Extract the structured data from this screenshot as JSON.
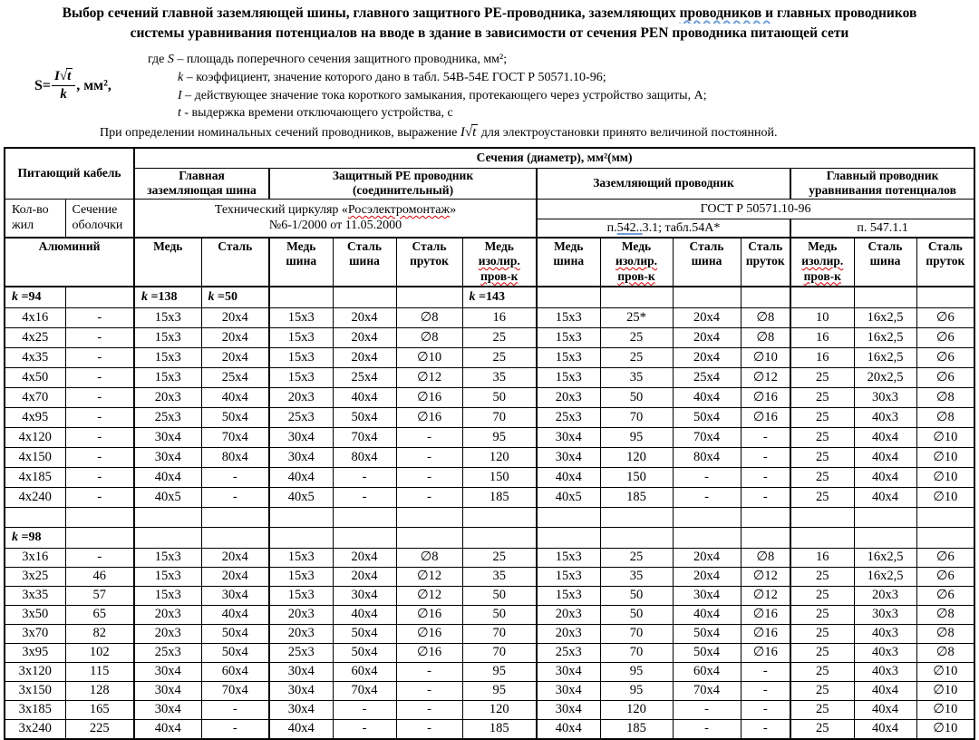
{
  "title": {
    "line1_pre": "Выбор сечений главной заземляющей шины, главного защитного РЕ-проводника, заземляющих ",
    "line1_marked": "проводников  и",
    "line1_post": " главных проводников",
    "line2": "системы уравнивания потенциалов на вводе в здание в зависимости от сечения PEN проводника питающей сети"
  },
  "formula": {
    "lhs": "S=",
    "num_var": "I",
    "num_rad": "t",
    "den": "k",
    "units": ", мм²,"
  },
  "definitions": [
    {
      "pre": "где ",
      "var": "S",
      "text": " – площадь поперечного сечения защитного проводника, мм²;"
    },
    {
      "pre": "",
      "var": "k",
      "text": " – коэффициент, значение которого дано в табл. 54В-54Е ГОСТ Р 50571.10-96;"
    },
    {
      "pre": "",
      "var": "I",
      "text": " – действующее значение тока короткого замыкания, протекающего через устройство защиты, А;"
    },
    {
      "pre": "",
      "var": "t",
      "text": " - выдержка времени отключающего устройства, с"
    }
  ],
  "note": {
    "pre": "При определении номинальных сечений проводников, выражение ",
    "var": "I",
    "rad": "t",
    "post": " для электроустановки принято величиной постоянной."
  },
  "table": {
    "header": {
      "feeding_cable": "Питающий кабель",
      "sections_title": "Сечения (диаметр), мм²(мм)",
      "gzsh_l1": "Главная",
      "gzsh_l2": "заземляющая шина",
      "pe_l1": "Защитный РЕ проводник",
      "pe_l2": "(соединительный)",
      "ground": "Заземляющий проводник",
      "equal_l1": "Главный проводник",
      "equal_l2": "уравнивания потенциалов",
      "cores_l1": "Кол-во",
      "cores_l2": "жил",
      "sheath_l1": "Сечение",
      "sheath_l2": "оболочки",
      "circ_pre": "Технический циркуляр «",
      "circ_word": "Росэлектромонтаж",
      "circ_post": "»",
      "circ_l2": "№6-1/2000 от 11.05.2000",
      "gost": "ГОСТ Р 50571.10-96",
      "p542_pre": "п.",
      "p542_marked": "542..",
      "p542_post": "3.1; табл.54А*",
      "p547": "п. 547.1.1"
    },
    "col_headers": [
      {
        "span": 2,
        "lines": [
          "Алюминий"
        ]
      },
      {
        "lines": [
          "Медь"
        ]
      },
      {
        "lines": [
          "Сталь"
        ]
      },
      {
        "lines": [
          "Медь",
          "шина"
        ]
      },
      {
        "lines": [
          "Сталь",
          "шина"
        ]
      },
      {
        "lines": [
          "Сталь",
          "пруток"
        ]
      },
      {
        "lines": [
          "Медь",
          "~изолир.",
          "~пров-к"
        ]
      },
      {
        "lines": [
          "Медь",
          "шина"
        ]
      },
      {
        "lines": [
          "Медь",
          "~изолир.",
          "~пров-к"
        ]
      },
      {
        "lines": [
          "Сталь",
          "шина"
        ]
      },
      {
        "lines": [
          "Сталь",
          "пруток"
        ]
      },
      {
        "lines": [
          "Медь",
          "~изолир.",
          "~пров-к"
        ]
      },
      {
        "lines": [
          "Сталь",
          "шина"
        ]
      },
      {
        "lines": [
          "Сталь",
          "пруток"
        ]
      }
    ],
    "rows": [
      [
        "k =94",
        "",
        "k =138",
        "k =50",
        "",
        "",
        "",
        "k =143",
        "",
        "",
        "",
        "",
        "",
        "",
        ""
      ],
      [
        "4x16",
        "-",
        "15x3",
        "20x4",
        "15x3",
        "20x4",
        "∅8",
        "16",
        "15x3",
        "25*",
        "20x4",
        "∅8",
        "10",
        "16x2,5",
        "∅6"
      ],
      [
        "4x25",
        "-",
        "15x3",
        "20x4",
        "15x3",
        "20x4",
        "∅8",
        "25",
        "15x3",
        "25",
        "20x4",
        "∅8",
        "16",
        "16x2,5",
        "∅6"
      ],
      [
        "4x35",
        "-",
        "15x3",
        "20x4",
        "15x3",
        "20x4",
        "∅10",
        "25",
        "15x3",
        "25",
        "20x4",
        "∅10",
        "16",
        "16x2,5",
        "∅6"
      ],
      [
        "4x50",
        "-",
        "15x3",
        "25x4",
        "15x3",
        "25x4",
        "∅12",
        "35",
        "15x3",
        "35",
        "25x4",
        "∅12",
        "25",
        "20x2,5",
        "∅6"
      ],
      [
        "4x70",
        "-",
        "20x3",
        "40x4",
        "20x3",
        "40x4",
        "∅16",
        "50",
        "20x3",
        "50",
        "40x4",
        "∅16",
        "25",
        "30x3",
        "∅8"
      ],
      [
        "4x95",
        "-",
        "25x3",
        "50x4",
        "25x3",
        "50x4",
        "∅16",
        "70",
        "25x3",
        "70",
        "50x4",
        "∅16",
        "25",
        "40x3",
        "∅8"
      ],
      [
        "4x120",
        "-",
        "30x4",
        "70x4",
        "30x4",
        "70x4",
        "-",
        "95",
        "30x4",
        "95",
        "70x4",
        "-",
        "25",
        "40x4",
        "∅10"
      ],
      [
        "4x150",
        "-",
        "30x4",
        "80x4",
        "30x4",
        "80x4",
        "-",
        "120",
        "30x4",
        "120",
        "80x4",
        "-",
        "25",
        "40x4",
        "∅10"
      ],
      [
        "4x185",
        "-",
        "40x4",
        "-",
        "40x4",
        "-",
        "-",
        "150",
        "40x4",
        "150",
        "-",
        "-",
        "25",
        "40x4",
        "∅10"
      ],
      [
        "4x240",
        "-",
        "40x5",
        "-",
        "40x5",
        "-",
        "-",
        "185",
        "40x5",
        "185",
        "-",
        "-",
        "25",
        "40x4",
        "∅10"
      ],
      [
        "",
        "",
        "",
        "",
        "",
        "",
        "",
        "",
        "",
        "",
        "",
        "",
        "",
        "",
        ""
      ],
      [
        "k =98",
        "",
        "",
        "",
        "",
        "",
        "",
        "",
        "",
        "",
        "",
        "",
        "",
        "",
        ""
      ],
      [
        "3x16",
        "-",
        "15x3",
        "20x4",
        "15x3",
        "20x4",
        "∅8",
        "25",
        "15x3",
        "25",
        "20x4",
        "∅8",
        "16",
        "16x2,5",
        "∅6"
      ],
      [
        "3x25",
        "46",
        "15x3",
        "20x4",
        "15x3",
        "20x4",
        "∅12",
        "35",
        "15x3",
        "35",
        "20x4",
        "∅12",
        "25",
        "16x2,5",
        "∅6"
      ],
      [
        "3x35",
        "57",
        "15x3",
        "30x4",
        "15x3",
        "30x4",
        "∅12",
        "50",
        "15x3",
        "50",
        "30x4",
        "∅12",
        "25",
        "20x3",
        "∅6"
      ],
      [
        "3x50",
        "65",
        "20x3",
        "40x4",
        "20x3",
        "40x4",
        "∅16",
        "50",
        "20x3",
        "50",
        "40x4",
        "∅16",
        "25",
        "30x3",
        "∅8"
      ],
      [
        "3x70",
        "82",
        "20x3",
        "50x4",
        "20x3",
        "50x4",
        "∅16",
        "70",
        "20x3",
        "70",
        "50x4",
        "∅16",
        "25",
        "40x3",
        "∅8"
      ],
      [
        "3x95",
        "102",
        "25x3",
        "50x4",
        "25x3",
        "50x4",
        "∅16",
        "70",
        "25x3",
        "70",
        "50x4",
        "∅16",
        "25",
        "40x3",
        "∅8"
      ],
      [
        "3x120",
        "115",
        "30x4",
        "60x4",
        "30x4",
        "60x4",
        "-",
        "95",
        "30x4",
        "95",
        "60x4",
        "-",
        "25",
        "40x3",
        "∅10"
      ],
      [
        "3x150",
        "128",
        "30x4",
        "70x4",
        "30x4",
        "70x4",
        "-",
        "95",
        "30x4",
        "95",
        "70x4",
        "-",
        "25",
        "40x4",
        "∅10"
      ],
      [
        "3x185",
        "165",
        "30x4",
        "-",
        "30x4",
        "-",
        "-",
        "120",
        "30x4",
        "120",
        "-",
        "-",
        "25",
        "40x4",
        "∅10"
      ],
      [
        "3x240",
        "225",
        "40x4",
        "-",
        "40x4",
        "-",
        "-",
        "185",
        "40x4",
        "185",
        "-",
        "-",
        "25",
        "40x4",
        "∅10"
      ]
    ]
  }
}
